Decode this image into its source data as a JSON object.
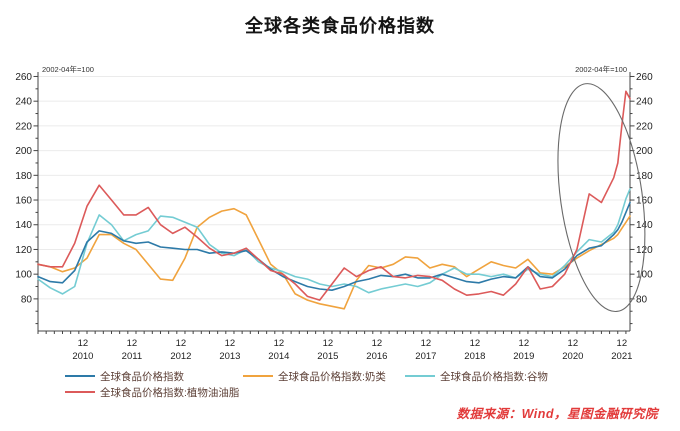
{
  "header": {
    "title": "全球各类食品价格指数"
  },
  "source": {
    "text": "数据来源：Wind，星图金融研究院"
  },
  "chart_data": {
    "type": "line",
    "title": "全球各类食品价格指数",
    "note_left": "2002-04年=100",
    "note_right": "2002-04年=100",
    "ylim": [
      54,
      262
    ],
    "yticks": [
      80,
      100,
      120,
      140,
      160,
      180,
      200,
      220,
      240,
      260
    ],
    "grid": "horizontal-light",
    "legend_position": "bottom",
    "dec_label": "12",
    "x_axis_years": [
      "2010",
      "2011",
      "2012",
      "2013",
      "2014",
      "2015",
      "2016",
      "2017",
      "2018",
      "2019",
      "2020",
      "2021"
    ],
    "x_dates": [
      "2010-01",
      "2010-04",
      "2010-07",
      "2010-10",
      "2011-01",
      "2011-04",
      "2011-07",
      "2011-10",
      "2012-01",
      "2012-04",
      "2012-07",
      "2012-10",
      "2013-01",
      "2013-04",
      "2013-07",
      "2013-10",
      "2014-01",
      "2014-04",
      "2014-07",
      "2014-10",
      "2015-01",
      "2015-04",
      "2015-07",
      "2015-10",
      "2016-01",
      "2016-04",
      "2016-07",
      "2016-10",
      "2017-01",
      "2017-04",
      "2017-07",
      "2017-10",
      "2018-01",
      "2018-04",
      "2018-07",
      "2018-10",
      "2019-01",
      "2019-04",
      "2019-07",
      "2019-10",
      "2020-01",
      "2020-04",
      "2020-07",
      "2020-10",
      "2021-01",
      "2021-04",
      "2021-07",
      "2021-10",
      "2021-11",
      "2021-12",
      "2022-01",
      "2022-02"
    ],
    "series": [
      {
        "key": "overall",
        "name": "全球食品价格指数",
        "color": "#2d7aa8",
        "values": [
          98,
          94,
          93,
          103,
          126,
          135,
          133,
          127,
          125,
          126,
          122,
          121,
          120,
          120,
          117,
          118,
          117,
          119,
          112,
          104,
          98,
          94,
          90,
          88,
          87,
          90,
          94,
          96,
          99,
          98,
          100,
          97,
          97,
          100,
          97,
          94,
          93,
          96,
          98,
          97,
          106,
          98,
          97,
          104,
          115,
          121,
          123,
          132,
          136,
          142,
          150,
          158
        ]
      },
      {
        "key": "dairy",
        "name": "全球食品价格指数:奶类",
        "color": "#f0a33e",
        "values": [
          108,
          106,
          102,
          105,
          113,
          132,
          132,
          125,
          120,
          108,
          96,
          95,
          113,
          138,
          146,
          151,
          153,
          148,
          128,
          108,
          100,
          84,
          79,
          76,
          74,
          72,
          95,
          107,
          105,
          108,
          114,
          113,
          105,
          108,
          106,
          98,
          104,
          110,
          107,
          105,
          112,
          101,
          100,
          106,
          113,
          119,
          124,
          129,
          132,
          137,
          142,
          147
        ]
      },
      {
        "key": "cereals",
        "name": "全球食品价格指数:谷物",
        "color": "#74ccd3",
        "values": [
          96,
          89,
          84,
          90,
          125,
          148,
          140,
          127,
          132,
          135,
          147,
          146,
          142,
          138,
          124,
          117,
          115,
          120,
          110,
          105,
          102,
          98,
          96,
          92,
          90,
          92,
          90,
          85,
          88,
          90,
          92,
          90,
          93,
          100,
          105,
          100,
          100,
          98,
          100,
          97,
          104,
          100,
          98,
          107,
          118,
          128,
          126,
          134,
          140,
          150,
          161,
          169
        ]
      },
      {
        "key": "vegoil",
        "name": "全球食品价格指数:植物油油脂",
        "color": "#dc5a5a",
        "values": [
          108,
          106,
          106,
          125,
          155,
          172,
          160,
          148,
          148,
          154,
          140,
          133,
          138,
          130,
          121,
          115,
          117,
          121,
          112,
          103,
          100,
          92,
          82,
          79,
          92,
          105,
          98,
          103,
          106,
          98,
          97,
          99,
          98,
          95,
          88,
          83,
          84,
          86,
          83,
          92,
          106,
          88,
          90,
          100,
          120,
          165,
          158,
          178,
          190,
          220,
          248,
          242
        ]
      }
    ],
    "annotation_ellipse": {
      "cx_date": "2021-07",
      "cy_value": 162,
      "rx_months": 10,
      "ry_value": 93,
      "rotate_deg": -8,
      "color": "#6a6a6a"
    }
  }
}
